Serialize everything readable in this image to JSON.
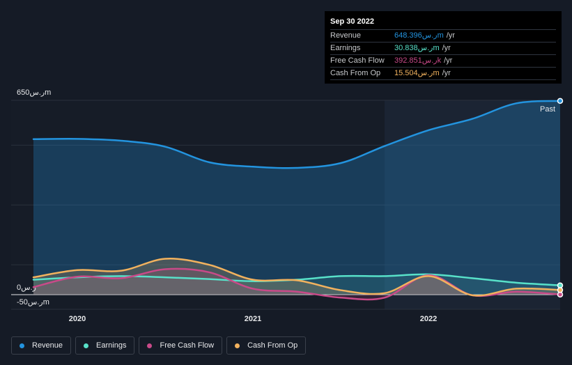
{
  "tooltip": {
    "date": "Sep 30 2022",
    "rows": [
      {
        "label": "Revenue",
        "value": "648.396ر.سm",
        "unit": "/yr",
        "color": "#2394df"
      },
      {
        "label": "Earnings",
        "value": "30.838ر.سm",
        "unit": "/yr",
        "color": "#58e1c9"
      },
      {
        "label": "Free Cash Flow",
        "value": "392.851ر.سk",
        "unit": "/yr",
        "color": "#c94a89"
      },
      {
        "label": "Cash From Op",
        "value": "15.504ر.سm",
        "unit": "/yr",
        "color": "#f2b25e"
      }
    ]
  },
  "past_label": "Past",
  "legend": [
    {
      "label": "Revenue",
      "color": "#2394df"
    },
    {
      "label": "Earnings",
      "color": "#58e1c9"
    },
    {
      "label": "Free Cash Flow",
      "color": "#c94a89"
    },
    {
      "label": "Cash From Op",
      "color": "#f2b25e"
    }
  ],
  "chart_data": {
    "type": "line",
    "y_ticks": [
      {
        "value": 650,
        "label": "650ر.سm"
      },
      {
        "value": 0,
        "label": "0ر.س"
      },
      {
        "value": -50,
        "label": "-50ر.سm"
      }
    ],
    "ylim": [
      -50,
      650
    ],
    "xlim": [
      2019.75,
      2022.75
    ],
    "x_ticks": [
      {
        "value": 2020,
        "label": "2020"
      },
      {
        "value": 2021,
        "label": "2021"
      },
      {
        "value": 2022,
        "label": "2022"
      }
    ],
    "past_start": 2021.75,
    "series": [
      {
        "name": "Revenue",
        "color": "#2394df",
        "points": [
          [
            2019.75,
            520
          ],
          [
            2020.0,
            521
          ],
          [
            2020.25,
            515
          ],
          [
            2020.5,
            495
          ],
          [
            2020.75,
            443
          ],
          [
            2021.0,
            428
          ],
          [
            2021.25,
            424
          ],
          [
            2021.5,
            440
          ],
          [
            2021.75,
            497
          ],
          [
            2022.0,
            550
          ],
          [
            2022.25,
            588
          ],
          [
            2022.5,
            640
          ],
          [
            2022.75,
            648
          ]
        ]
      },
      {
        "name": "Earnings",
        "color": "#58e1c9",
        "points": [
          [
            2019.75,
            50
          ],
          [
            2020.0,
            58
          ],
          [
            2020.25,
            62
          ],
          [
            2020.5,
            58
          ],
          [
            2020.75,
            52
          ],
          [
            2021.0,
            45
          ],
          [
            2021.25,
            50
          ],
          [
            2021.5,
            62
          ],
          [
            2021.75,
            62
          ],
          [
            2022.0,
            68
          ],
          [
            2022.25,
            55
          ],
          [
            2022.5,
            40
          ],
          [
            2022.75,
            31
          ]
        ]
      },
      {
        "name": "Free Cash Flow",
        "color": "#c94a89",
        "points": [
          [
            2019.75,
            25
          ],
          [
            2020.0,
            60
          ],
          [
            2020.25,
            55
          ],
          [
            2020.5,
            85
          ],
          [
            2020.75,
            75
          ],
          [
            2021.0,
            20
          ],
          [
            2021.25,
            10
          ],
          [
            2021.5,
            -10
          ],
          [
            2021.75,
            -10
          ],
          [
            2022.0,
            65
          ],
          [
            2022.25,
            -2
          ],
          [
            2022.5,
            10
          ],
          [
            2022.75,
            0.4
          ]
        ]
      },
      {
        "name": "Cash From Op",
        "color": "#f2b25e",
        "points": [
          [
            2019.75,
            58
          ],
          [
            2020.0,
            82
          ],
          [
            2020.25,
            80
          ],
          [
            2020.5,
            120
          ],
          [
            2020.75,
            100
          ],
          [
            2021.0,
            50
          ],
          [
            2021.25,
            48
          ],
          [
            2021.5,
            15
          ],
          [
            2021.75,
            5
          ],
          [
            2022.0,
            62
          ],
          [
            2022.25,
            -2
          ],
          [
            2022.5,
            20
          ],
          [
            2022.75,
            15.5
          ]
        ]
      }
    ]
  }
}
